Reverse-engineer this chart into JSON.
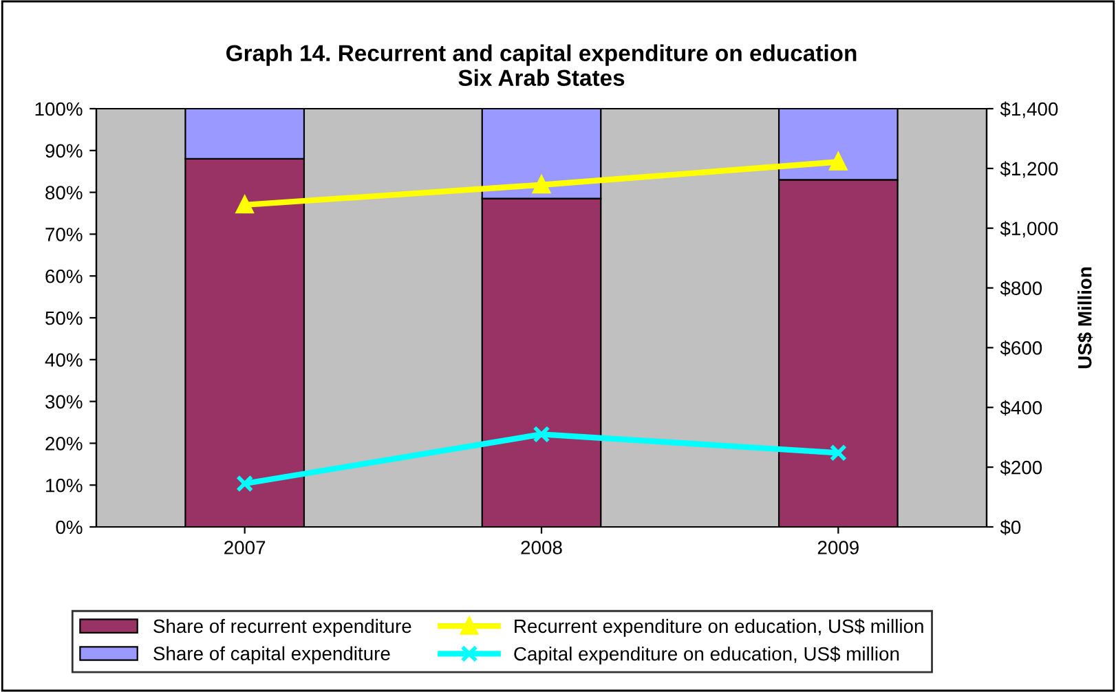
{
  "chart_data": {
    "type": "bar",
    "title": "Graph 14. Recurrent and capital expenditure on education\nSix Arab States",
    "y2label": "US$ Million",
    "categories": [
      "2007",
      "2008",
      "2009"
    ],
    "stacked": true,
    "series": [
      {
        "name": "Share of recurrent expenditure",
        "color": "#993366",
        "values": [
          88,
          78.5,
          83
        ]
      },
      {
        "name": "Share of capital expenditure",
        "color": "#9999ff",
        "values": [
          12,
          21.5,
          17
        ]
      },
      {
        "name": "Recurrent expenditure on education, US$ million",
        "type": "line",
        "axis": "y2",
        "color": "#ffff00",
        "marker": "triangle",
        "values": [
          1078,
          1145,
          1222
        ]
      },
      {
        "name": "Capital expenditure on education, US$ million",
        "type": "line",
        "axis": "y2",
        "color": "#00ffff",
        "marker": "cross",
        "values": [
          145,
          310,
          248
        ]
      }
    ],
    "ylim": [
      0,
      100
    ],
    "yticks": [
      {
        "value": 0,
        "label": "0%"
      },
      {
        "value": 10,
        "label": "10%"
      },
      {
        "value": 20,
        "label": "20%"
      },
      {
        "value": 30,
        "label": "30%"
      },
      {
        "value": 40,
        "label": "40%"
      },
      {
        "value": 50,
        "label": "50%"
      },
      {
        "value": 60,
        "label": "60%"
      },
      {
        "value": 70,
        "label": "70%"
      },
      {
        "value": 80,
        "label": "80%"
      },
      {
        "value": 90,
        "label": "90%"
      },
      {
        "value": 100,
        "label": "100%"
      }
    ],
    "y2lim": [
      0,
      1400
    ],
    "y2ticks": [
      {
        "value": 0,
        "label": "$0"
      },
      {
        "value": 200,
        "label": "$200"
      },
      {
        "value": 400,
        "label": "$400"
      },
      {
        "value": 600,
        "label": "$600"
      },
      {
        "value": 800,
        "label": "$800"
      },
      {
        "value": 1000,
        "label": "$1,000"
      },
      {
        "value": 1200,
        "label": "$1,200"
      },
      {
        "value": 1400,
        "label": "$1,400"
      }
    ],
    "grid": false,
    "legend": "bottom"
  }
}
